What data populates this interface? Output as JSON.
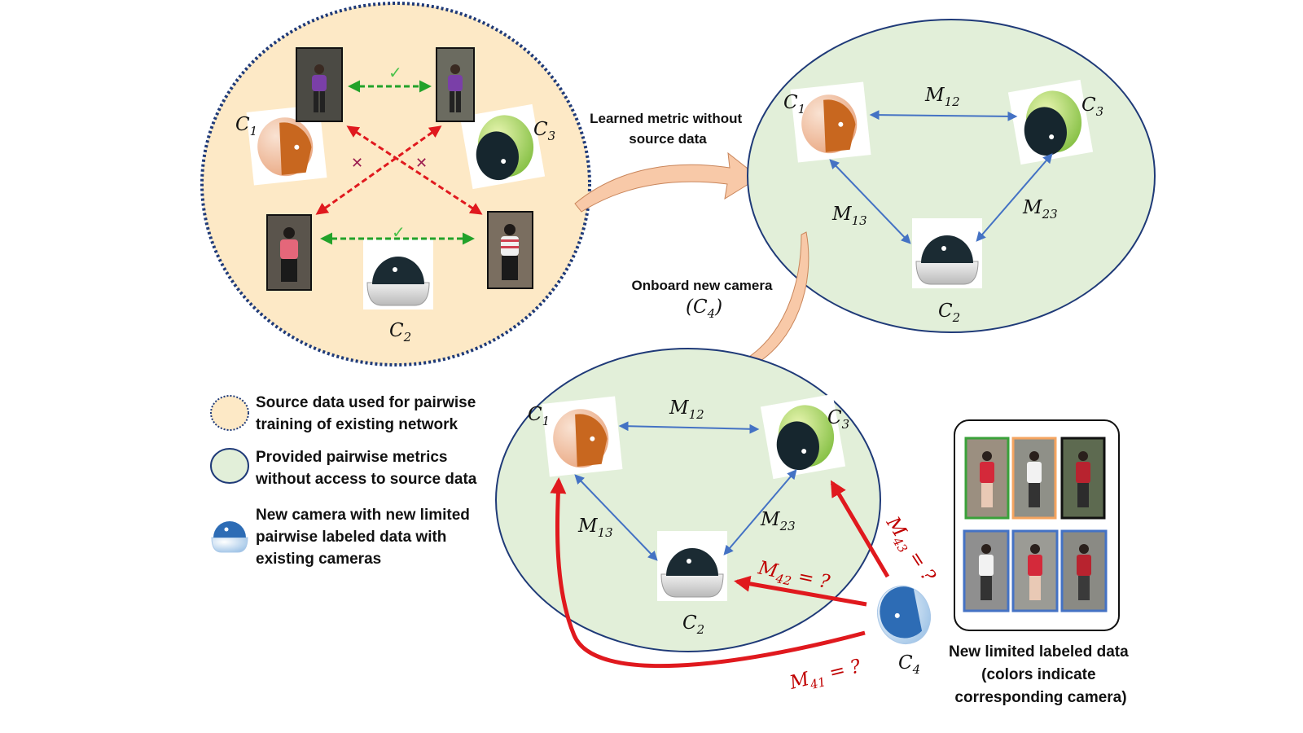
{
  "colors": {
    "source_fill": "#fde9c6",
    "source_stroke": "#1f3a78",
    "metric_fill": "#e2efd9",
    "metric_stroke": "#1f3a78",
    "blue_arrow": "#4472c4",
    "green_arrow": "#22a22a",
    "red_arrow": "#e0191e",
    "red_text": "#c00000",
    "big_arrow_fill": "#f8c9a8"
  },
  "source_circle": {
    "cam1": {
      "base": "C",
      "sub": "1"
    },
    "cam2": {
      "base": "C",
      "sub": "2"
    },
    "cam3": {
      "base": "C",
      "sub": "3"
    },
    "match_mark": "✓",
    "mismatch_mark": "✕"
  },
  "learned_arrow_label": [
    "Learned metric without",
    "source data"
  ],
  "metric_circle": {
    "cam1": {
      "base": "C",
      "sub": "1"
    },
    "cam2": {
      "base": "C",
      "sub": "2"
    },
    "cam3": {
      "base": "C",
      "sub": "3"
    },
    "m12": {
      "base": "M",
      "sub": "12"
    },
    "m13": {
      "base": "M",
      "sub": "13"
    },
    "m23": {
      "base": "M",
      "sub": "23"
    }
  },
  "onboard_label": {
    "text": "Onboard new camera",
    "open": "(",
    "base": "C",
    "sub": "4",
    "close": ")"
  },
  "new_circle": {
    "cam1": {
      "base": "C",
      "sub": "1"
    },
    "cam2": {
      "base": "C",
      "sub": "2"
    },
    "cam3": {
      "base": "C",
      "sub": "3"
    },
    "m12": {
      "base": "M",
      "sub": "12"
    },
    "m13": {
      "base": "M",
      "sub": "13"
    },
    "m23": {
      "base": "M",
      "sub": "23"
    }
  },
  "new_camera": {
    "label": {
      "base": "C",
      "sub": "4"
    },
    "m41": {
      "base": "M",
      "sub": "41",
      "suffix": " = ?"
    },
    "m42": {
      "base": "M",
      "sub": "42",
      "suffix": " = ?"
    },
    "m43": {
      "base": "M",
      "sub": "43",
      "suffix": " = ?"
    }
  },
  "legend": {
    "item1": [
      "Source data used for pairwise",
      "training of existing network"
    ],
    "item2": [
      "Provided pairwise metrics",
      "without access to source data"
    ],
    "item3": [
      "New camera with new limited",
      "pairwise labeled data with",
      "existing cameras"
    ]
  },
  "labeled_data": {
    "caption": [
      "New limited labeled data",
      "(colors  indicate",
      "corresponding camera)"
    ],
    "thumb_border_colors": [
      "#3aa13a",
      "#f4a460",
      "#111111",
      "#4472c4",
      "#4472c4",
      "#4472c4"
    ]
  }
}
